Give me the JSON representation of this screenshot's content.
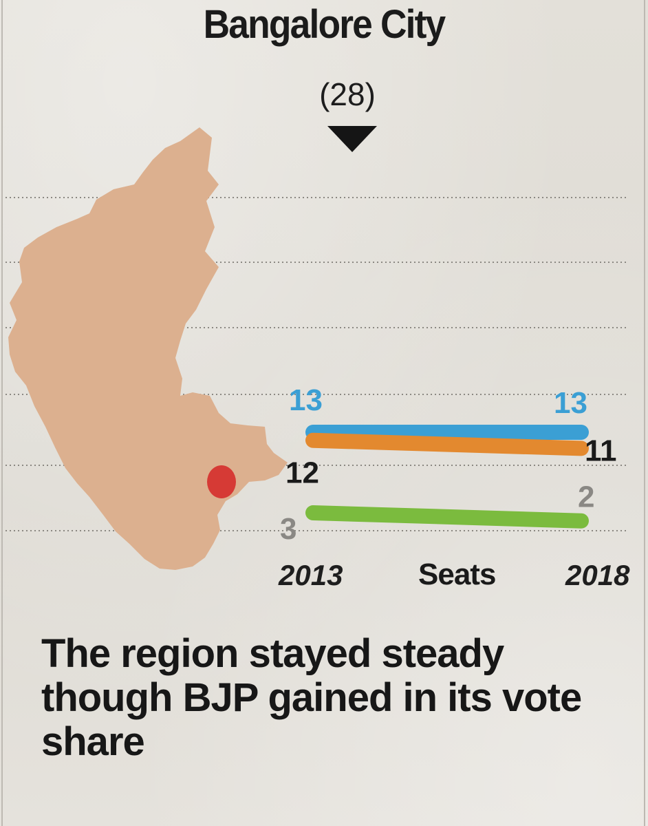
{
  "title": "Bangalore City",
  "total_seats": "(28)",
  "caption": "The region stayed steady though BJP gained in its vote share",
  "icons": {
    "pointer": "down-triangle-icon",
    "map": "karnataka-map-icon",
    "region_marker": "bangalore-region-marker"
  },
  "colors": {
    "map_fill": "#dcb08f",
    "region_marker": "#d63a35",
    "party_blue": "#3b9fd4",
    "party_orange": "#e3892f",
    "party_green": "#7bbb3e"
  },
  "chart_data": {
    "type": "slope",
    "title": "Bangalore City",
    "xlabel": "Seats",
    "categories": [
      "2013",
      "2018"
    ],
    "series": [
      {
        "name": "blue-party",
        "color": "#3b9fd4",
        "values": [
          13,
          13
        ],
        "labels": [
          "13",
          "13"
        ]
      },
      {
        "name": "orange-party",
        "color": "#e3892f",
        "values": [
          12,
          11
        ],
        "labels": [
          "12",
          "11"
        ]
      },
      {
        "name": "green-party",
        "color": "#7bbb3e",
        "values": [
          3,
          2
        ],
        "labels": [
          "3",
          "2"
        ]
      }
    ]
  }
}
